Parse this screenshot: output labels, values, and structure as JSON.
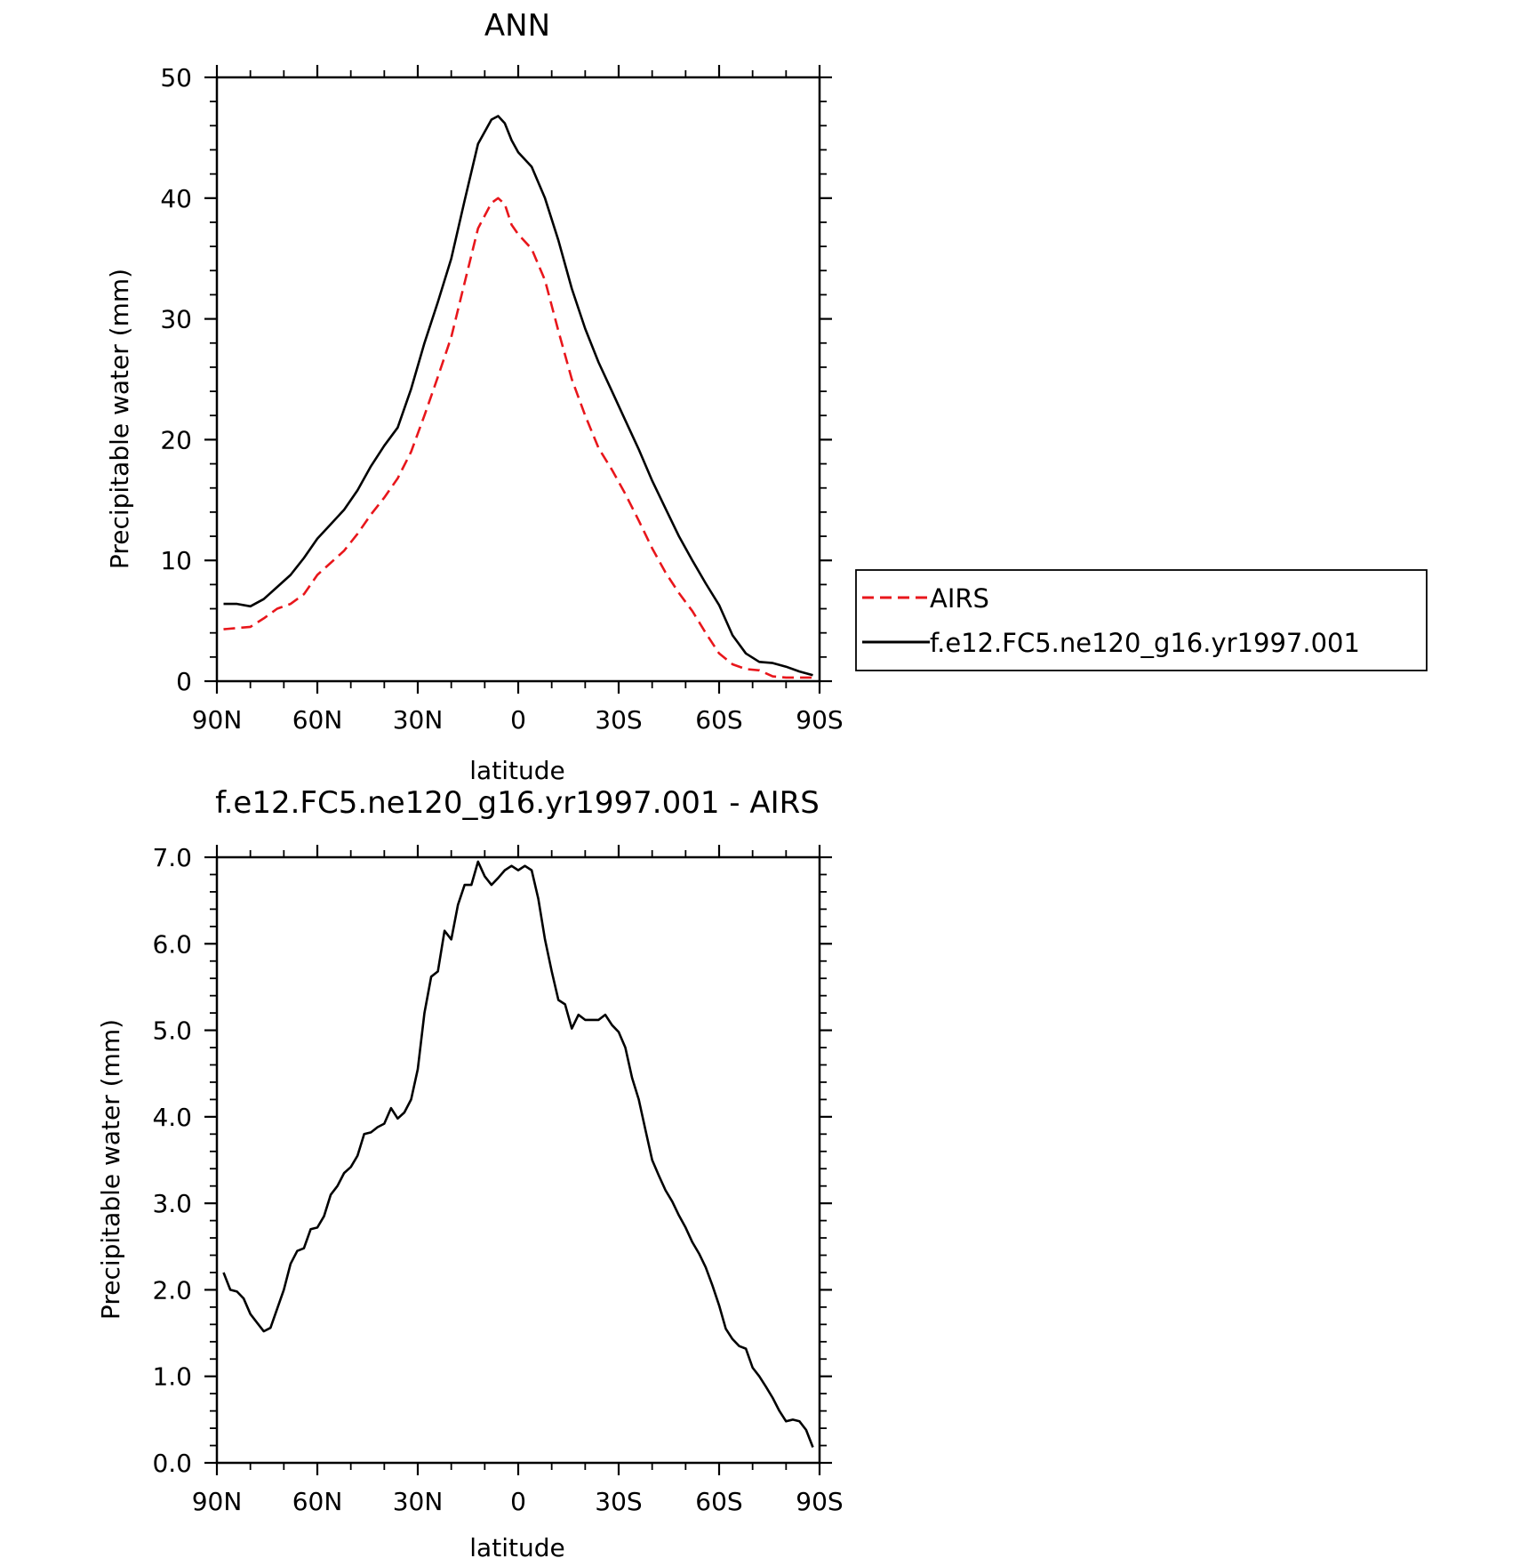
{
  "chart_data": [
    {
      "type": "line",
      "title": "ANN",
      "xlabel": "latitude",
      "ylabel": "Precipitable water (mm)",
      "xlim": [
        90,
        -90
      ],
      "ylim": [
        0,
        50
      ],
      "xticks": [
        90,
        60,
        30,
        0,
        -30,
        -60,
        -90
      ],
      "xtick_labels": [
        "90N",
        "60N",
        "30N",
        "0",
        "30S",
        "60S",
        "90S"
      ],
      "yticks": [
        0,
        10,
        20,
        30,
        40,
        50
      ],
      "ytick_labels": [
        "0",
        "10",
        "20",
        "30",
        "40",
        "50"
      ],
      "grid": false,
      "legend_position": "right",
      "series": [
        {
          "name": "AIRS",
          "color": "#e8161b",
          "dash": true,
          "x": [
            88,
            84,
            80,
            76,
            72,
            68,
            64,
            60,
            56,
            52,
            48,
            44,
            40,
            36,
            32,
            28,
            24,
            20,
            16,
            12,
            8,
            6,
            4,
            2,
            0,
            -4,
            -8,
            -12,
            -16,
            -20,
            -24,
            -28,
            -32,
            -36,
            -40,
            -44,
            -48,
            -52,
            -56,
            -60,
            -64,
            -68,
            -72,
            -76,
            -80,
            -84,
            -88
          ],
          "y": [
            4.3,
            4.4,
            4.5,
            5.2,
            6.0,
            6.4,
            7.2,
            8.8,
            9.8,
            10.8,
            12.2,
            13.8,
            15.2,
            16.8,
            19.0,
            22.0,
            25.2,
            28.5,
            33.0,
            37.5,
            39.6,
            40.0,
            39.5,
            37.8,
            37.0,
            35.8,
            33.2,
            29.0,
            25.0,
            22.0,
            19.3,
            17.5,
            15.5,
            13.3,
            11.0,
            9.0,
            7.3,
            5.8,
            4.0,
            2.3,
            1.4,
            1.0,
            0.9,
            0.4,
            0.3,
            0.3,
            0.3
          ]
        },
        {
          "name": "f.e12.FC5.ne120_g16.yr1997.001",
          "color": "#000000",
          "dash": false,
          "x": [
            88,
            84,
            80,
            76,
            72,
            68,
            64,
            60,
            56,
            52,
            48,
            44,
            40,
            36,
            32,
            28,
            24,
            20,
            16,
            12,
            8,
            6,
            4,
            2,
            0,
            -4,
            -8,
            -12,
            -16,
            -20,
            -24,
            -28,
            -32,
            -36,
            -40,
            -44,
            -48,
            -52,
            -56,
            -60,
            -64,
            -68,
            -72,
            -76,
            -80,
            -84,
            -88
          ],
          "y": [
            6.4,
            6.4,
            6.2,
            6.8,
            7.8,
            8.8,
            10.2,
            11.8,
            13.0,
            14.2,
            15.8,
            17.8,
            19.5,
            21.0,
            24.2,
            28.0,
            31.4,
            35.0,
            39.8,
            44.5,
            46.5,
            46.8,
            46.2,
            44.8,
            43.8,
            42.6,
            40.0,
            36.5,
            32.5,
            29.2,
            26.4,
            24.0,
            21.6,
            19.2,
            16.6,
            14.3,
            12.0,
            10.0,
            8.1,
            6.3,
            3.8,
            2.3,
            1.6,
            1.5,
            1.2,
            0.8,
            0.5
          ]
        }
      ]
    },
    {
      "type": "line",
      "title": "f.e12.FC5.ne120_g16.yr1997.001 - AIRS",
      "xlabel": "latitude",
      "ylabel": "Precipitable water (mm)",
      "xlim": [
        90,
        -90
      ],
      "ylim": [
        0,
        7
      ],
      "xticks": [
        90,
        60,
        30,
        0,
        -30,
        -60,
        -90
      ],
      "xtick_labels": [
        "90N",
        "60N",
        "30N",
        "0",
        "30S",
        "60S",
        "90S"
      ],
      "yticks": [
        0,
        1,
        2,
        3,
        4,
        5,
        6,
        7
      ],
      "ytick_labels": [
        "0.0",
        "1.0",
        "2.0",
        "3.0",
        "4.0",
        "5.0",
        "6.0",
        "7.0"
      ],
      "grid": false,
      "series": [
        {
          "color": "#000000",
          "dash": false,
          "x": [
            88,
            86,
            84,
            82,
            80,
            78,
            76,
            74,
            72,
            70,
            68,
            66,
            64,
            62,
            60,
            58,
            56,
            54,
            52,
            50,
            48,
            46,
            44,
            42,
            40,
            38,
            36,
            34,
            32,
            30,
            28,
            26,
            24,
            22,
            20,
            18,
            16,
            14,
            12,
            10,
            8,
            6,
            4,
            2,
            0,
            -2,
            -4,
            -6,
            -8,
            -10,
            -12,
            -14,
            -16,
            -18,
            -20,
            -22,
            -24,
            -26,
            -28,
            -30,
            -32,
            -34,
            -36,
            -38,
            -40,
            -42,
            -44,
            -46,
            -48,
            -50,
            -52,
            -54,
            -56,
            -58,
            -60,
            -62,
            -64,
            -66,
            -68,
            -70,
            -72,
            -74,
            -76,
            -78,
            -80,
            -82,
            -84,
            -86,
            -88
          ],
          "y": [
            2.2,
            2.0,
            1.98,
            1.9,
            1.72,
            1.62,
            1.52,
            1.56,
            1.78,
            2.0,
            2.3,
            2.45,
            2.48,
            2.7,
            2.72,
            2.85,
            3.1,
            3.2,
            3.35,
            3.42,
            3.55,
            3.8,
            3.82,
            3.88,
            3.92,
            4.1,
            3.98,
            4.05,
            4.2,
            4.55,
            5.2,
            5.62,
            5.68,
            6.15,
            6.05,
            6.45,
            6.68,
            6.68,
            6.95,
            6.78,
            6.68,
            6.76,
            6.85,
            6.9,
            6.85,
            6.9,
            6.85,
            6.52,
            6.05,
            5.68,
            5.35,
            5.3,
            5.02,
            5.18,
            5.12,
            5.12,
            5.12,
            5.18,
            5.06,
            4.98,
            4.8,
            4.45,
            4.2,
            3.85,
            3.5,
            3.32,
            3.15,
            3.02,
            2.86,
            2.72,
            2.55,
            2.42,
            2.26,
            2.05,
            1.82,
            1.55,
            1.43,
            1.35,
            1.32,
            1.1,
            1.0,
            0.88,
            0.75,
            0.6,
            0.48,
            0.5,
            0.48,
            0.38,
            0.18
          ]
        }
      ]
    }
  ]
}
